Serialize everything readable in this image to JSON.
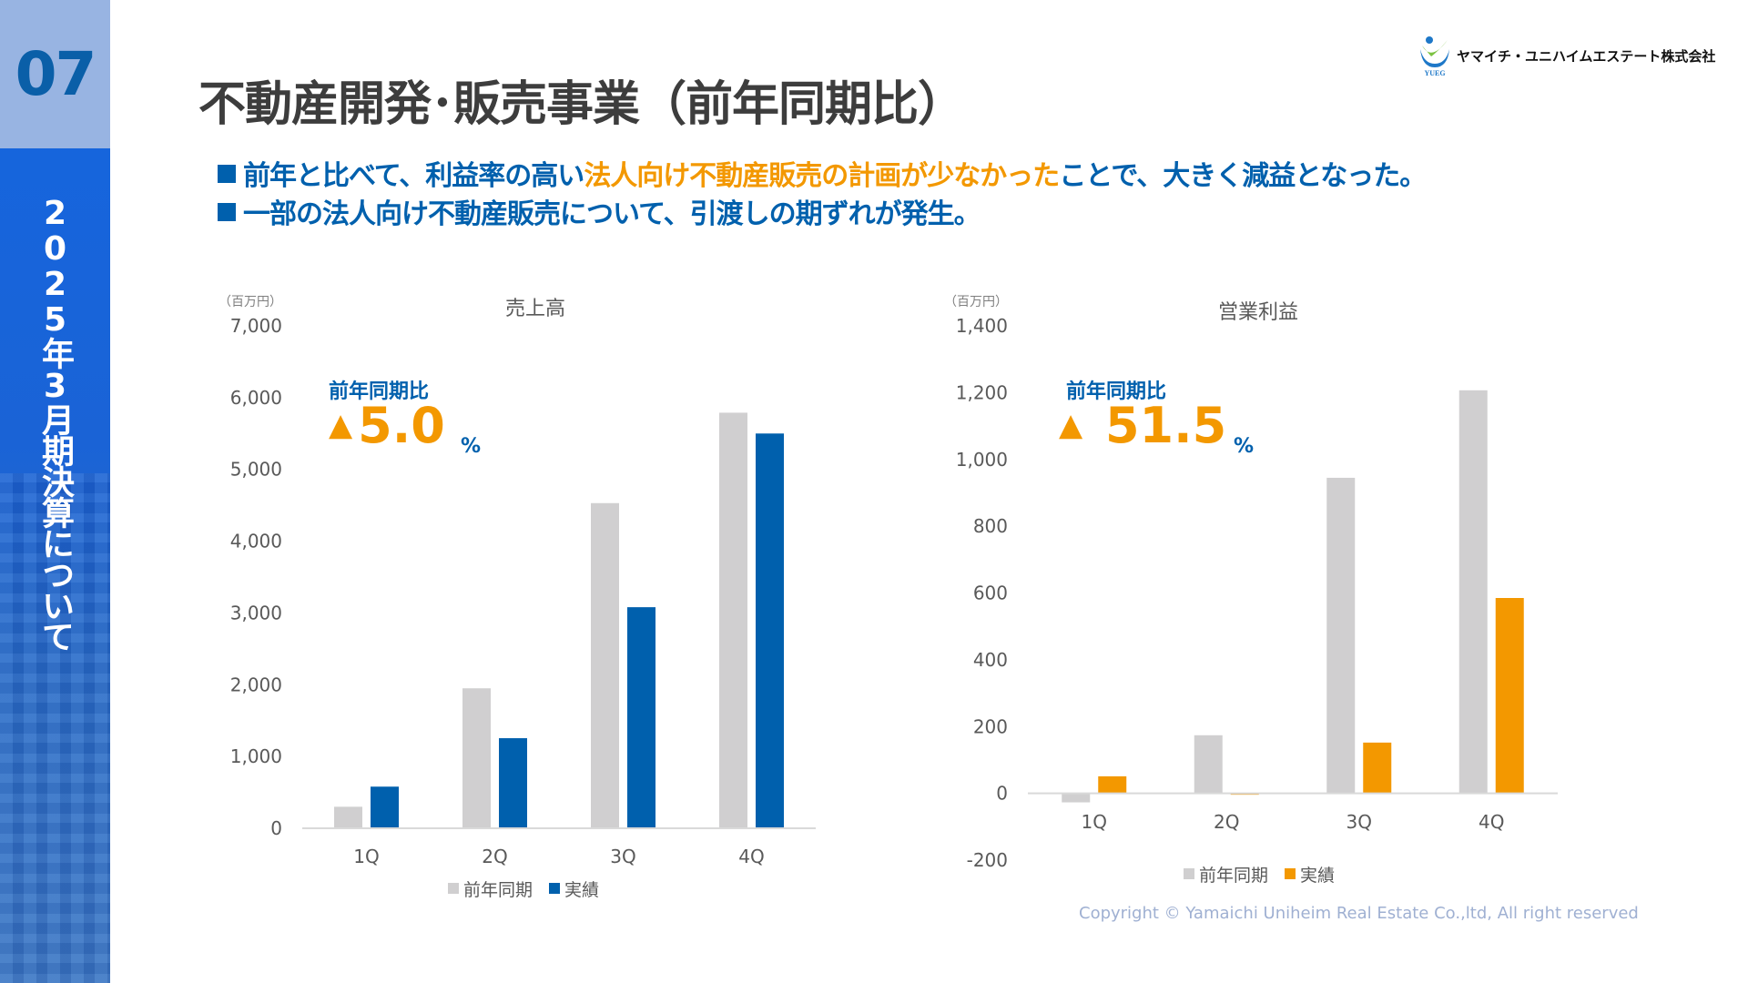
{
  "sidebar": {
    "page_number": "07",
    "section_title": "2025年3月期決算について"
  },
  "header": {
    "title": "不動産開発･販売事業（前年同期比）",
    "company_name": "ヤマイチ・ユニハイムエステート株式会社",
    "logo_text": "YUEG"
  },
  "bullets": [
    {
      "pre": "前年と比べて、利益率の高い",
      "highlight": "法人向け不動産販売の計画が少なかった",
      "post": "ことで、大きく減益となった。"
    },
    {
      "pre": "一部の法人向け不動産販売について、引渡しの期ずれが発生。",
      "highlight": "",
      "post": ""
    }
  ],
  "colors": {
    "blue": "#0060ad",
    "orange": "#f39800",
    "gray": "#d0cfd0",
    "title": "#3d3d3d"
  },
  "chart_data": [
    {
      "type": "bar",
      "title": "売上高",
      "unit": "（百万円）",
      "categories": [
        "1Q",
        "2Q",
        "3Q",
        "4Q"
      ],
      "series": [
        {
          "name": "前年同期",
          "values": [
            300,
            1950,
            4530,
            5790
          ],
          "color": "#d0cfd0"
        },
        {
          "name": "実績",
          "values": [
            580,
            1255,
            3080,
            5500
          ],
          "color": "#0060ad"
        }
      ],
      "ylim": [
        0,
        7000
      ],
      "yticks": [
        "0",
        "1,000",
        "2,000",
        "3,000",
        "4,000",
        "5,000",
        "6,000",
        "7,000"
      ],
      "ytick_values": [
        0,
        1000,
        2000,
        3000,
        4000,
        5000,
        6000,
        7000
      ],
      "legend": "bottom",
      "grid": false,
      "annotation": {
        "label": "前年同期比",
        "symbol": "▲",
        "value": "5.0",
        "unit": "%"
      }
    },
    {
      "type": "bar",
      "title": "営業利益",
      "unit": "（百万円）",
      "categories": [
        "1Q",
        "2Q",
        "3Q",
        "4Q"
      ],
      "series": [
        {
          "name": "前年同期",
          "values": [
            -27,
            174,
            945,
            1207
          ],
          "color": "#d0cfd0"
        },
        {
          "name": "実績",
          "values": [
            51,
            -4,
            152,
            585
          ],
          "color": "#f39800"
        }
      ],
      "ylim": [
        -200,
        1400
      ],
      "yticks": [
        "-200",
        "0",
        "200",
        "400",
        "600",
        "800",
        "1,000",
        "1,200",
        "1,400"
      ],
      "ytick_values": [
        -200,
        0,
        200,
        400,
        600,
        800,
        1000,
        1200,
        1400
      ],
      "legend": "bottom",
      "grid": false,
      "annotation": {
        "label": "前年同期比",
        "symbol": "▲",
        "value": "51.5",
        "unit": "%"
      }
    }
  ],
  "footer": {
    "copyright": "Copyright © Yamaichi Uniheim Real Estate Co.,ltd, All right reserved"
  }
}
